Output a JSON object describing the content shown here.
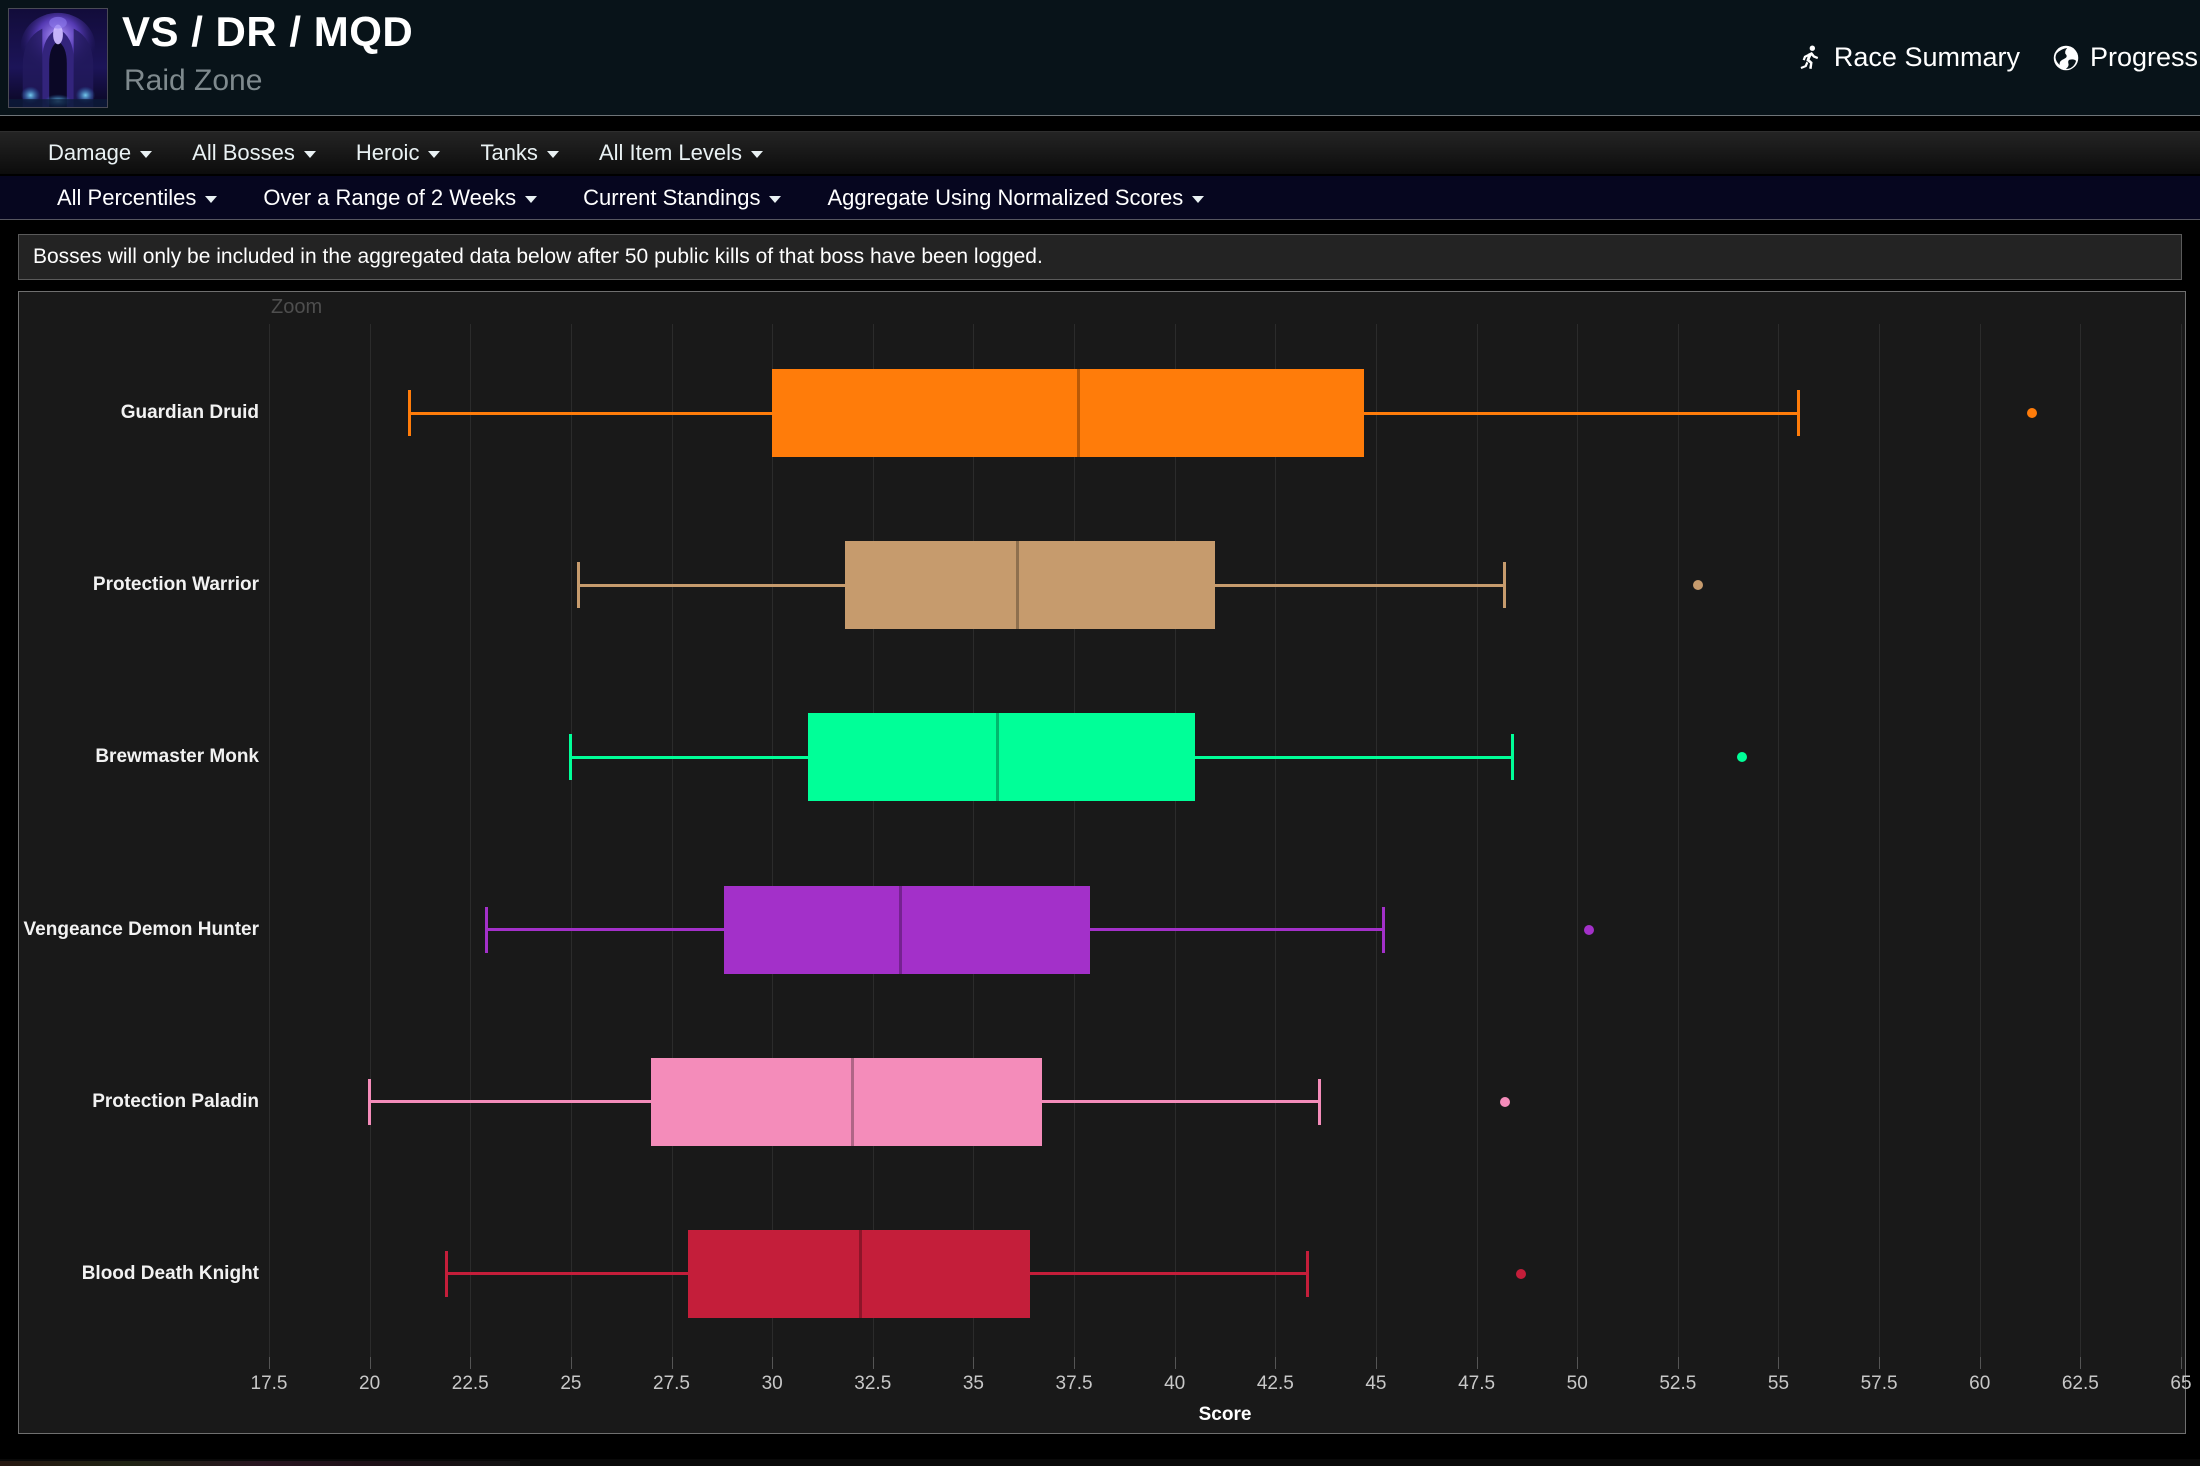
{
  "header": {
    "title": "VS / DR / MQD",
    "subtitle": "Raid Zone",
    "links": [
      {
        "label": "Race Summary",
        "icon": "runner-icon"
      },
      {
        "label": "Progress",
        "icon": "globe-icon"
      }
    ]
  },
  "nav_primary": [
    {
      "label": "Damage"
    },
    {
      "label": "All Bosses"
    },
    {
      "label": "Heroic"
    },
    {
      "label": "Tanks"
    },
    {
      "label": "All Item Levels"
    }
  ],
  "nav_secondary": [
    {
      "label": "All Percentiles"
    },
    {
      "label": "Over a Range of 2 Weeks"
    },
    {
      "label": "Current Standings"
    },
    {
      "label": "Aggregate Using Normalized Scores"
    }
  ],
  "notice": "Bosses will only be included in the aggregated data below after 50 public kills of that boss have been logged.",
  "chart_data": {
    "type": "boxplot",
    "orientation": "horizontal",
    "zoom_label": "Zoom",
    "xlabel": "Score",
    "xlim": [
      17.5,
      65
    ],
    "ticks": [
      17.5,
      20,
      22.5,
      25,
      27.5,
      30,
      32.5,
      35,
      37.5,
      40,
      42.5,
      45,
      47.5,
      50,
      52.5,
      55,
      57.5,
      60,
      62.5,
      65
    ],
    "grid": true,
    "background": "#191919",
    "categories": [
      "Guardian Druid",
      "Protection Warrior",
      "Brewmaster Monk",
      "Vengeance Demon Hunter",
      "Protection Paladin",
      "Blood Death Knight"
    ],
    "series": [
      {
        "name": "Guardian Druid",
        "color": "#FF7C0A",
        "low": 21.0,
        "q1": 30.0,
        "median": 37.6,
        "q3": 44.7,
        "high": 55.5,
        "outliers": [
          61.3
        ]
      },
      {
        "name": "Protection Warrior",
        "color": "#C69B6D",
        "low": 25.2,
        "q1": 31.8,
        "median": 36.1,
        "q3": 41.0,
        "high": 48.2,
        "outliers": [
          53.0
        ]
      },
      {
        "name": "Brewmaster Monk",
        "color": "#00FF98",
        "low": 25.0,
        "q1": 30.9,
        "median": 35.6,
        "q3": 40.5,
        "high": 48.4,
        "outliers": [
          54.1
        ]
      },
      {
        "name": "Vengeance Demon Hunter",
        "color": "#A330C9",
        "low": 22.9,
        "q1": 28.8,
        "median": 33.2,
        "q3": 37.9,
        "high": 45.2,
        "outliers": [
          50.3
        ]
      },
      {
        "name": "Protection Paladin",
        "color": "#F48CBA",
        "low": 20.0,
        "q1": 27.0,
        "median": 32.0,
        "q3": 36.7,
        "high": 43.6,
        "outliers": [
          48.2
        ]
      },
      {
        "name": "Blood Death Knight",
        "color": "#C41E3A",
        "low": 21.9,
        "q1": 27.9,
        "median": 32.2,
        "q3": 36.4,
        "high": 43.3,
        "outliers": [
          48.6
        ]
      }
    ]
  }
}
